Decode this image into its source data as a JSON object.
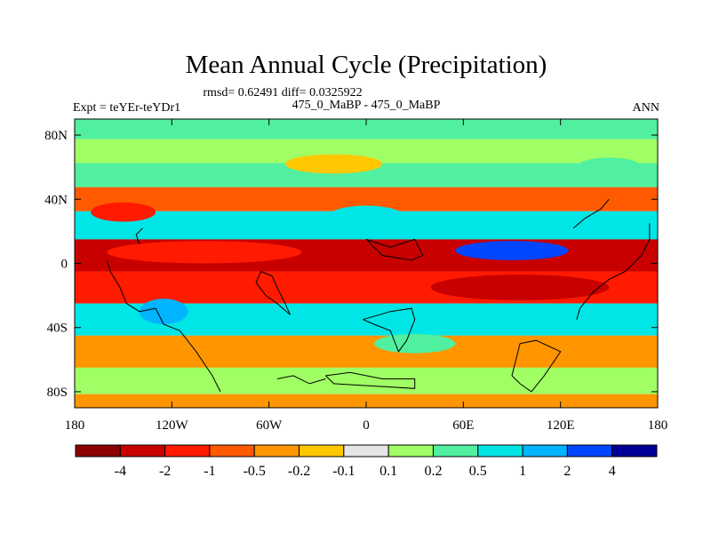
{
  "chart_data": {
    "type": "heatmap",
    "title": "Mean Annual Cycle (Precipitation)",
    "stats_line": "rmsd= 0.62491 diff= 0.0325922",
    "left_label": "Expt = teYEr-teYDr1",
    "center_label": "475_0_MaBP - 475_0_MaBP",
    "right_label": "ANN",
    "x_ticks": [
      {
        "value": -180,
        "label": "180"
      },
      {
        "value": -120,
        "label": "120W"
      },
      {
        "value": -60,
        "label": "60W"
      },
      {
        "value": 0,
        "label": "0"
      },
      {
        "value": 60,
        "label": "60E"
      },
      {
        "value": 120,
        "label": "120E"
      },
      {
        "value": 180,
        "label": "180"
      }
    ],
    "y_ticks": [
      {
        "value": 80,
        "label": "80N"
      },
      {
        "value": 40,
        "label": "40N"
      },
      {
        "value": 0,
        "label": "0"
      },
      {
        "value": -40,
        "label": "40S"
      },
      {
        "value": -80,
        "label": "80S"
      }
    ],
    "xlim": [
      -180,
      180
    ],
    "ylim": [
      -90,
      90
    ],
    "colorbar": {
      "colors": [
        "#8c0000",
        "#c80000",
        "#ff1a00",
        "#ff5a00",
        "#ff9600",
        "#ffc800",
        "#e6e6e6",
        "#a0ff64",
        "#50f0a0",
        "#00e6e6",
        "#00b4ff",
        "#0046ff",
        "#000096"
      ],
      "labels": [
        "-4",
        "-2",
        "-1",
        "-0.5",
        "-0.2",
        "-0.1",
        "0.1",
        "0.2",
        "0.5",
        "1",
        "2",
        "4"
      ]
    },
    "field_bands": [
      {
        "lat": 85,
        "level": "0.2"
      },
      {
        "lat": 70,
        "level": "0.1"
      },
      {
        "lat": 55,
        "level": "0.2"
      },
      {
        "lat": 40,
        "level": "-0.5"
      },
      {
        "lat": 25,
        "level": "0.5"
      },
      {
        "lat": 5,
        "level": "-2"
      },
      {
        "lat": -15,
        "level": "-1"
      },
      {
        "lat": -35,
        "level": "0.5"
      },
      {
        "lat": -55,
        "level": "-0.2"
      },
      {
        "lat": -75,
        "level": "0.1"
      },
      {
        "lat": -88,
        "level": "-0.2"
      }
    ],
    "features": [
      {
        "lon": 90,
        "lat": 8,
        "rlon": 35,
        "rlat": 6,
        "level": "2"
      },
      {
        "lon": 95,
        "lat": -15,
        "rlon": 55,
        "rlat": 8,
        "level": "-2"
      },
      {
        "lon": -100,
        "lat": 7,
        "rlon": 60,
        "rlat": 7,
        "level": "-1"
      },
      {
        "lon": -150,
        "lat": 32,
        "rlon": 20,
        "rlat": 6,
        "level": "-1"
      },
      {
        "lon": -125,
        "lat": -30,
        "rlon": 15,
        "rlat": 8,
        "level": "1"
      },
      {
        "lon": 0,
        "lat": 28,
        "rlon": 25,
        "rlat": 8,
        "level": "0.5"
      },
      {
        "lon": 30,
        "lat": -50,
        "rlon": 25,
        "rlat": 6,
        "level": "0.2"
      },
      {
        "lon": -20,
        "lat": 62,
        "rlon": 30,
        "rlat": 6,
        "level": "-0.1"
      },
      {
        "lon": 150,
        "lat": 60,
        "rlon": 20,
        "rlat": 6,
        "level": "0.2"
      }
    ],
    "coastlines": [
      [
        [
          -160,
          2
        ],
        [
          -158,
          -5
        ],
        [
          -152,
          -15
        ],
        [
          -148,
          -25
        ],
        [
          -140,
          -30
        ],
        [
          -130,
          -28
        ],
        [
          -125,
          -38
        ],
        [
          -115,
          -42
        ],
        [
          -105,
          -55
        ],
        [
          -95,
          -70
        ],
        [
          -90,
          -80
        ]
      ],
      [
        [
          -65,
          -5
        ],
        [
          -58,
          -8
        ],
        [
          -55,
          -15
        ],
        [
          -50,
          -25
        ],
        [
          -47,
          -32
        ],
        [
          -55,
          -25
        ],
        [
          -62,
          -20
        ],
        [
          -68,
          -12
        ],
        [
          -65,
          -5
        ]
      ],
      [
        [
          -2,
          -35
        ],
        [
          5,
          -38
        ],
        [
          15,
          -42
        ],
        [
          20,
          -55
        ],
        [
          25,
          -48
        ],
        [
          30,
          -35
        ],
        [
          28,
          -28
        ],
        [
          15,
          -30
        ],
        [
          -2,
          -35
        ]
      ],
      [
        [
          -55,
          -72
        ],
        [
          -45,
          -70
        ],
        [
          -35,
          -75
        ],
        [
          -25,
          -72
        ]
      ],
      [
        [
          0,
          15
        ],
        [
          15,
          10
        ],
        [
          30,
          15
        ],
        [
          35,
          5
        ],
        [
          28,
          2
        ],
        [
          10,
          5
        ],
        [
          0,
          15
        ]
      ],
      [
        [
          95,
          -50
        ],
        [
          105,
          -48
        ],
        [
          120,
          -55
        ],
        [
          110,
          -70
        ],
        [
          102,
          -80
        ],
        [
          95,
          -75
        ],
        [
          90,
          -70
        ],
        [
          95,
          -50
        ]
      ],
      [
        [
          130,
          -35
        ],
        [
          132,
          -28
        ],
        [
          140,
          -18
        ],
        [
          150,
          -10
        ],
        [
          160,
          -5
        ],
        [
          170,
          5
        ],
        [
          175,
          15
        ],
        [
          175,
          25
        ]
      ],
      [
        [
          128,
          22
        ],
        [
          135,
          28
        ],
        [
          145,
          34
        ],
        [
          150,
          40
        ]
      ],
      [
        [
          -25,
          -70
        ],
        [
          -10,
          -68
        ],
        [
          10,
          -72
        ],
        [
          30,
          -72
        ],
        [
          30,
          -78
        ],
        [
          -20,
          -75
        ],
        [
          -25,
          -70
        ]
      ],
      [
        [
          -140,
          12
        ],
        [
          -142,
          18
        ],
        [
          -138,
          22
        ]
      ]
    ]
  }
}
